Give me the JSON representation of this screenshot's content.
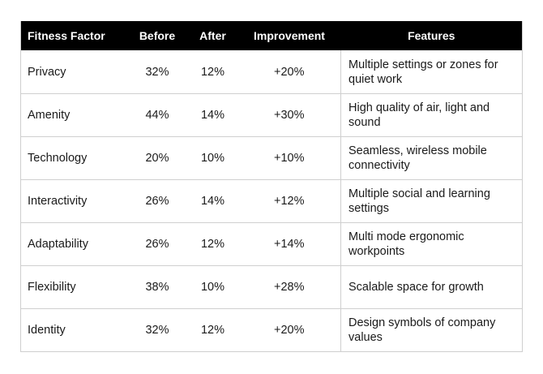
{
  "table": {
    "headers": [
      "Fitness Factor",
      "Before",
      "After",
      "Improvement",
      "Features"
    ],
    "rows": [
      {
        "factor": "Privacy",
        "before": "32%",
        "after": "12%",
        "improvement": "+20%",
        "features": "Multiple settings or zones for quiet work"
      },
      {
        "factor": "Amenity",
        "before": "44%",
        "after": "14%",
        "improvement": "+30%",
        "features": "High quality of air, light and sound"
      },
      {
        "factor": "Technology",
        "before": "20%",
        "after": "10%",
        "improvement": "+10%",
        "features": "Seamless, wireless mobile connectivity"
      },
      {
        "factor": "Interactivity",
        "before": "26%",
        "after": "14%",
        "improvement": "+12%",
        "features": "Multiple social and learning settings"
      },
      {
        "factor": "Adaptability",
        "before": "26%",
        "after": "12%",
        "improvement": "+14%",
        "features": "Multi mode ergonomic workpoints"
      },
      {
        "factor": "Flexibility",
        "before": "38%",
        "after": "10%",
        "improvement": "+28%",
        "features": "Scalable space for growth"
      },
      {
        "factor": "Identity",
        "before": "32%",
        "after": "12%",
        "improvement": "+20%",
        "features": "Design symbols of company values"
      }
    ]
  },
  "colors": {
    "header_bg": "#000000",
    "header_text": "#ffffff",
    "grid_line": "#cfcfcf"
  }
}
